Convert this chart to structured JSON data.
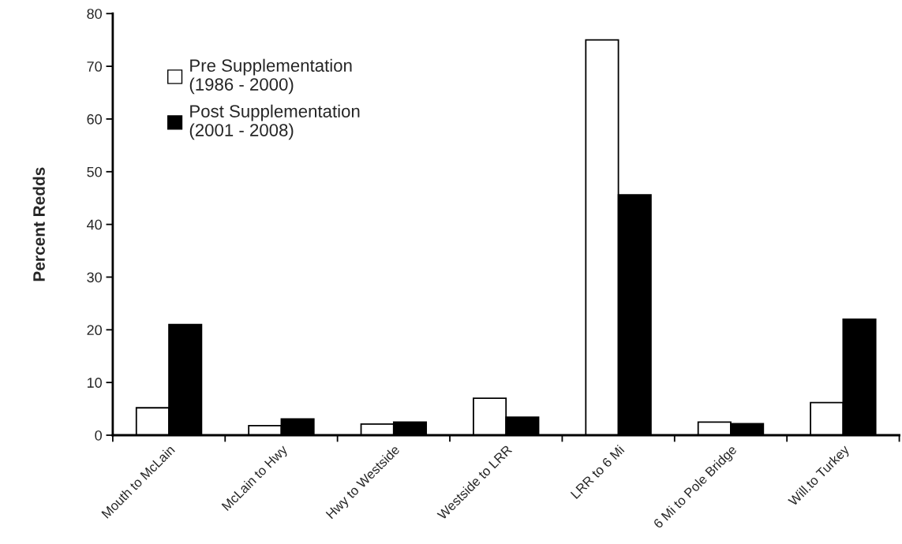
{
  "chart_data": {
    "type": "bar",
    "ylabel": "Percent Redds",
    "categories": [
      "Mouth to McLain",
      "McLain to Hwy",
      "Hwy to Westside",
      "Westside to LRR",
      "LRR to 6 Mi",
      "6 Mi to Pole Bridge",
      "Will.to Turkey"
    ],
    "series": [
      {
        "name": "Pre Supplementation\n(1986 - 2000)",
        "color": "#ffffff",
        "values": [
          5.2,
          1.8,
          2.1,
          7.0,
          75.0,
          2.5,
          6.2
        ]
      },
      {
        "name": "Post Supplementation\n(2001 - 2008)",
        "color": "#000000",
        "values": [
          21.0,
          3.1,
          2.5,
          3.4,
          45.6,
          2.2,
          22.0
        ]
      }
    ],
    "ylim": [
      0,
      80
    ],
    "yticks": [
      0,
      10,
      20,
      30,
      40,
      50,
      60,
      70,
      80
    ],
    "grid": false,
    "legend": "top left"
  }
}
